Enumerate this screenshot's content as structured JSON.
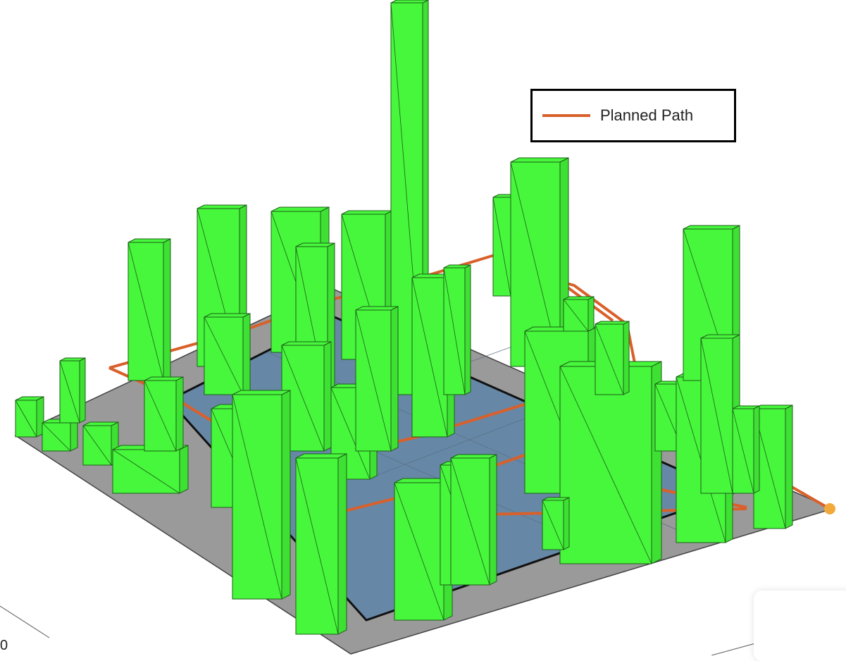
{
  "legend": {
    "entries": [
      {
        "label": "Planned Path",
        "color": "#d9602b"
      }
    ]
  },
  "axis": {
    "tick_label": "0"
  },
  "colors": {
    "building_fill": "#46f73b",
    "building_edge": "#1f5e1a",
    "ground": "#9a9a9a",
    "water": "#6688a6",
    "path": "#d9602b"
  }
}
